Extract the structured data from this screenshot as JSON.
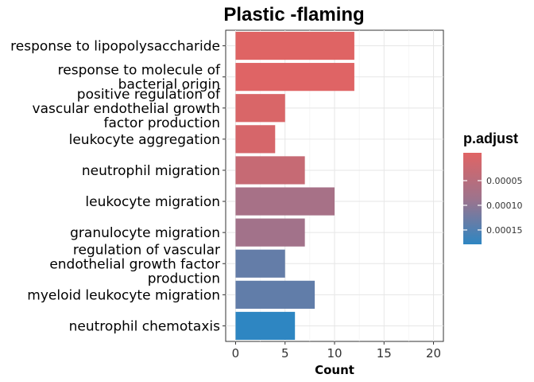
{
  "chart_data": {
    "type": "bar",
    "orientation": "horizontal",
    "title": "Plastic -flaming",
    "xlabel": "Count",
    "ylabel": "",
    "xlim": [
      -1,
      21
    ],
    "xticks": [
      "0",
      "5",
      "10",
      "15",
      "20"
    ],
    "grid": true,
    "legend_position": "right",
    "categories": [
      "response to lipopolysaccharide",
      "response to molecule of bacterial origin",
      "positive regulation of vascular endothelial growth factor production",
      "leukocyte aggregation",
      "neutrophil migration",
      "leukocyte migration",
      "granulocyte migration",
      "regulation of vascular endothelial growth factor production",
      "myeloid leukocyte migration",
      "neutrophil chemotaxis"
    ],
    "category_label_lines": [
      [
        "response to lipopolysaccharide"
      ],
      [
        "response to molecule of",
        "bacterial origin"
      ],
      [
        "positive regulation of",
        "vascular endothelial growth",
        "factor production"
      ],
      [
        "leukocyte aggregation"
      ],
      [
        "neutrophil migration"
      ],
      [
        "leukocyte migration"
      ],
      [
        "granulocyte migration"
      ],
      [
        "regulation of vascular",
        "endothelial growth factor",
        "production"
      ],
      [
        "myeloid leukocyte migration"
      ],
      [
        "neutrophil chemotaxis"
      ]
    ],
    "values": [
      12,
      12,
      5,
      4,
      7,
      10,
      7,
      5,
      8,
      6
    ],
    "color_values": [
      1e-06,
      1.2e-06,
      9e-06,
      1.4e-05,
      3.5e-05,
      7.8e-05,
      8.5e-05,
      0.000137,
      0.000139,
      0.00018
    ],
    "color_scale": {
      "name": "p.adjust",
      "low_color": "#e06464",
      "high_color": "#2e86c2",
      "domain": [
        0.0,
        0.00018
      ],
      "ticks": [
        {
          "value": 5e-05,
          "label": "0.00005"
        },
        {
          "value": 0.0001,
          "label": "0.00010"
        },
        {
          "value": 0.00015,
          "label": "0.00015"
        }
      ]
    }
  }
}
